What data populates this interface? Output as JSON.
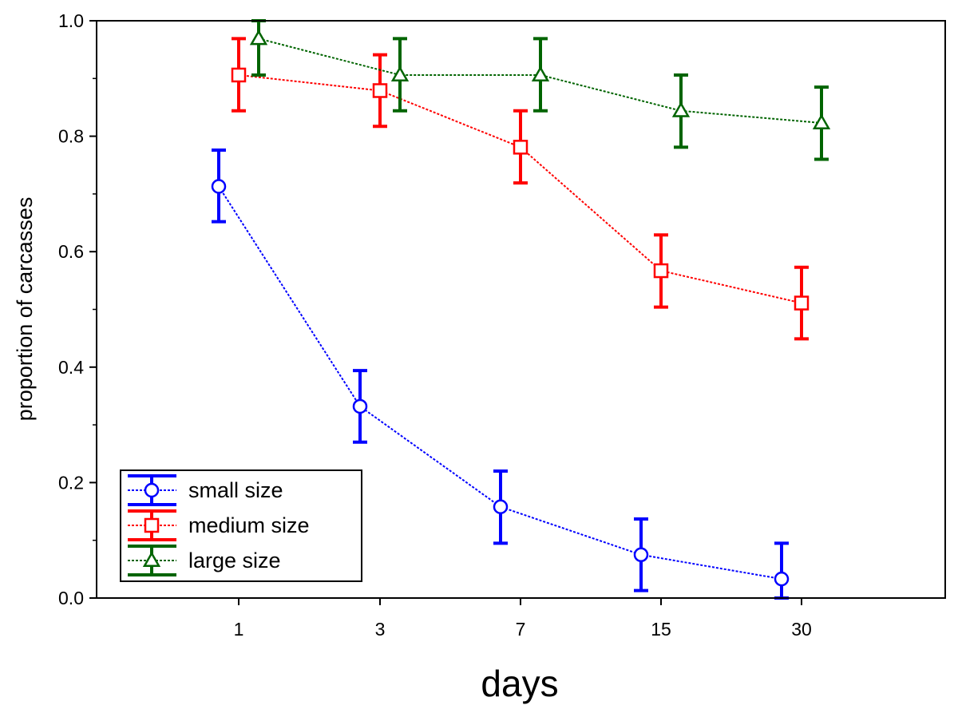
{
  "chart_data": {
    "type": "line",
    "title": "",
    "xlabel": "days",
    "ylabel": "proportion of carcasses",
    "categories": [
      "1",
      "3",
      "7",
      "15",
      "30"
    ],
    "ylim": [
      0.0,
      1.0
    ],
    "yticks": [
      "0.0",
      "0.2",
      "0.4",
      "0.6",
      "0.8",
      "1.0"
    ],
    "grid": false,
    "legend_position": "bottom-left",
    "series": [
      {
        "name": "small size",
        "color": "#0000ff",
        "marker": "circle",
        "values": [
          0.713,
          0.332,
          0.158,
          0.075,
          0.033
        ],
        "err_low": [
          0.652,
          0.27,
          0.095,
          0.013,
          0.0
        ],
        "err_high": [
          0.776,
          0.394,
          0.22,
          0.137,
          0.095
        ]
      },
      {
        "name": "medium size",
        "color": "#ff0000",
        "marker": "square",
        "values": [
          0.906,
          0.879,
          0.781,
          0.567,
          0.511
        ],
        "err_low": [
          0.844,
          0.817,
          0.719,
          0.504,
          0.449
        ],
        "err_high": [
          0.969,
          0.941,
          0.844,
          0.629,
          0.573
        ]
      },
      {
        "name": "large size",
        "color": "#006400",
        "marker": "triangle",
        "values": [
          0.969,
          0.906,
          0.906,
          0.844,
          0.823
        ],
        "err_low": [
          0.906,
          0.844,
          0.844,
          0.781,
          0.76
        ],
        "err_high": [
          1.0,
          0.969,
          0.969,
          0.906,
          0.885
        ]
      }
    ]
  }
}
